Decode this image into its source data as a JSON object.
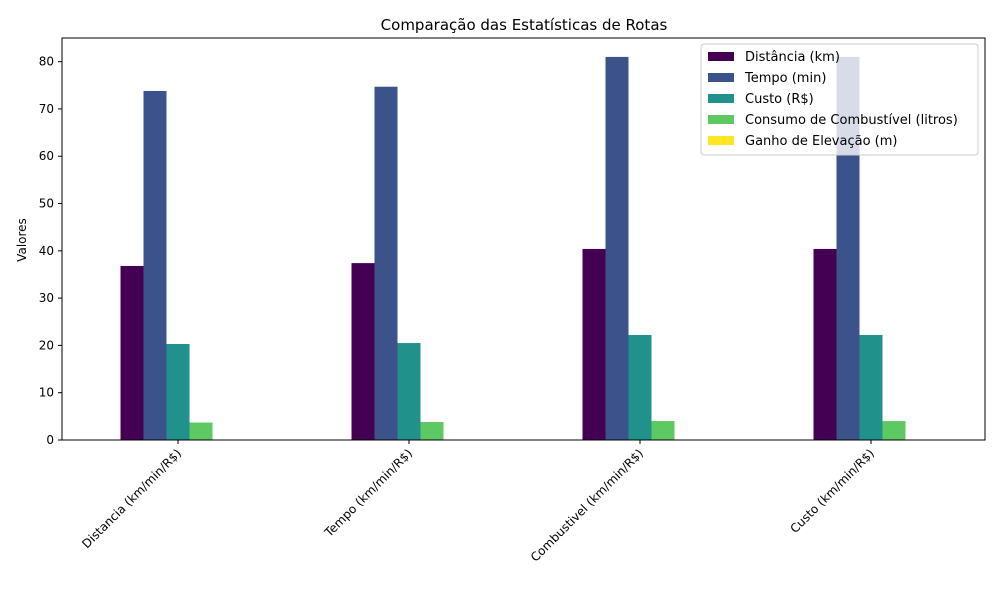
{
  "chart_data": {
    "type": "bar",
    "title": "Comparação das Estatísticas de Rotas",
    "xlabel": "",
    "ylabel": "Valores",
    "ylim": [
      0,
      85
    ],
    "yticks": [
      0,
      10,
      20,
      30,
      40,
      50,
      60,
      70,
      80
    ],
    "grid": false,
    "legend_position": "top-right",
    "categories": [
      "Distancia (km/min/R$)",
      "Tempo (km/min/R$)",
      "Combustivel (km/min/R$)",
      "Custo (km/min/R$)"
    ],
    "series": [
      {
        "name": "Distância (km)",
        "color": "#440154",
        "values": [
          36.8,
          37.4,
          40.4,
          40.4
        ]
      },
      {
        "name": "Tempo (min)",
        "color": "#3b528b",
        "values": [
          73.8,
          74.7,
          81.0,
          81.0
        ]
      },
      {
        "name": "Custo (R$)",
        "color": "#21918c",
        "values": [
          20.3,
          20.5,
          22.2,
          22.2
        ]
      },
      {
        "name": "Consumo de Combustível (litros)",
        "color": "#5ec962",
        "values": [
          3.7,
          3.8,
          4.0,
          4.0
        ]
      },
      {
        "name": "Ganho de Elevação (m)",
        "color": "#fde725",
        "values": [
          0,
          0,
          0,
          0
        ]
      }
    ]
  }
}
